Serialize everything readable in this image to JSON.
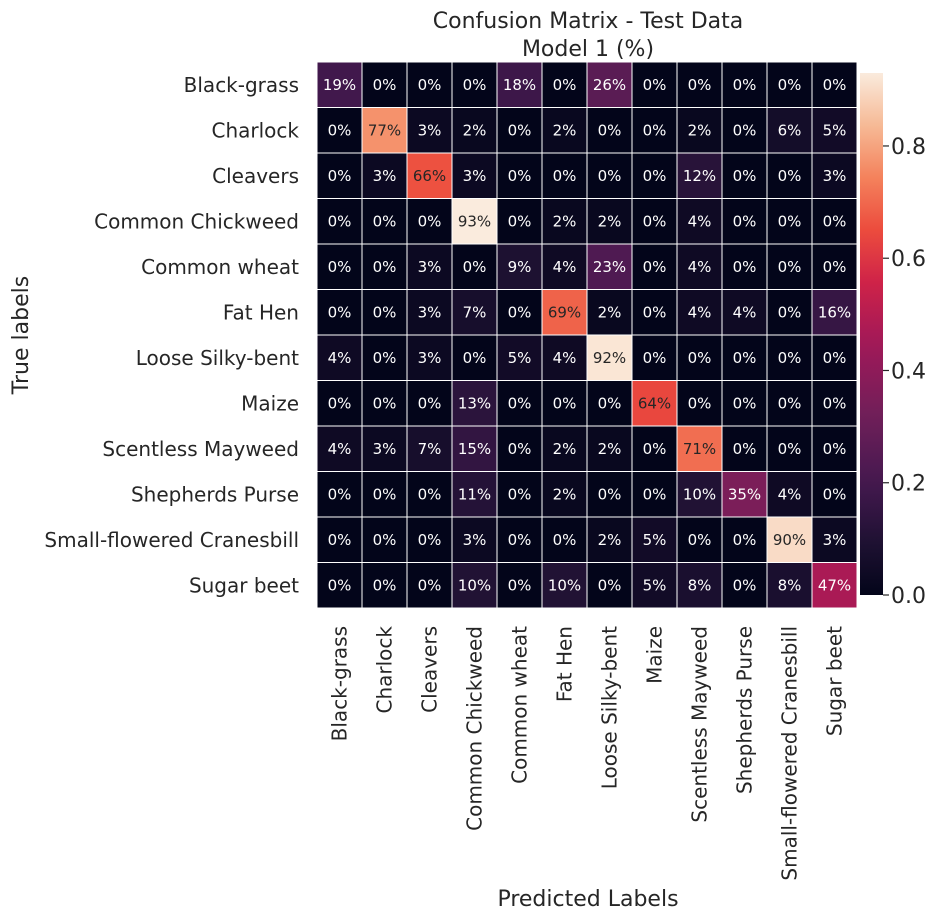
{
  "chart_data": {
    "type": "heatmap",
    "title": "Confusion Matrix - Test Data",
    "subtitle": "Model 1 (%)",
    "xlabel": "Predicted Labels",
    "ylabel": "True labels",
    "row_labels": [
      "Black-grass",
      "Charlock",
      "Cleavers",
      "Common Chickweed",
      "Common wheat",
      "Fat Hen",
      "Loose Silky-bent",
      "Maize",
      "Scentless Mayweed",
      "Shepherds Purse",
      "Small-flowered Cranesbill",
      "Sugar beet"
    ],
    "col_labels": [
      "Black-grass",
      "Charlock",
      "Cleavers",
      "Common Chickweed",
      "Common wheat",
      "Fat Hen",
      "Loose Silky-bent",
      "Maize",
      "Scentless Mayweed",
      "Shepherds Purse",
      "Small-flowered Cranesbill",
      "Sugar beet"
    ],
    "values": [
      [
        0.19,
        0.0,
        0.0,
        0.0,
        0.18,
        0.0,
        0.26,
        0.0,
        0.0,
        0.0,
        0.0,
        0.0
      ],
      [
        0.0,
        0.77,
        0.03,
        0.02,
        0.0,
        0.02,
        0.0,
        0.0,
        0.02,
        0.0,
        0.06,
        0.05
      ],
      [
        0.0,
        0.03,
        0.66,
        0.03,
        0.0,
        0.0,
        0.0,
        0.0,
        0.12,
        0.0,
        0.0,
        0.03
      ],
      [
        0.0,
        0.0,
        0.0,
        0.93,
        0.0,
        0.02,
        0.02,
        0.0,
        0.04,
        0.0,
        0.0,
        0.0
      ],
      [
        0.0,
        0.0,
        0.03,
        0.0,
        0.09,
        0.04,
        0.23,
        0.0,
        0.04,
        0.0,
        0.0,
        0.0
      ],
      [
        0.0,
        0.0,
        0.03,
        0.07,
        0.0,
        0.69,
        0.02,
        0.0,
        0.04,
        0.04,
        0.0,
        0.16
      ],
      [
        0.04,
        0.0,
        0.03,
        0.0,
        0.05,
        0.04,
        0.92,
        0.0,
        0.0,
        0.0,
        0.0,
        0.0
      ],
      [
        0.0,
        0.0,
        0.0,
        0.13,
        0.0,
        0.0,
        0.0,
        0.64,
        0.0,
        0.0,
        0.0,
        0.0
      ],
      [
        0.04,
        0.03,
        0.07,
        0.15,
        0.0,
        0.02,
        0.02,
        0.0,
        0.71,
        0.0,
        0.0,
        0.0
      ],
      [
        0.0,
        0.0,
        0.0,
        0.11,
        0.0,
        0.02,
        0.0,
        0.0,
        0.1,
        0.35,
        0.04,
        0.0
      ],
      [
        0.0,
        0.0,
        0.0,
        0.03,
        0.0,
        0.0,
        0.02,
        0.05,
        0.0,
        0.0,
        0.9,
        0.03
      ],
      [
        0.0,
        0.0,
        0.0,
        0.1,
        0.0,
        0.1,
        0.0,
        0.05,
        0.08,
        0.0,
        0.08,
        0.47
      ]
    ],
    "value_format": "percent",
    "colormap": "rocket",
    "colorbar": {
      "min": 0.0,
      "max": 0.93,
      "ticks": [
        "0.0",
        "0.2",
        "0.4",
        "0.6",
        "0.8"
      ]
    },
    "grid_color": "#ffffff",
    "text_color_dark": "#262626",
    "text_color_light": "#ffffff"
  }
}
